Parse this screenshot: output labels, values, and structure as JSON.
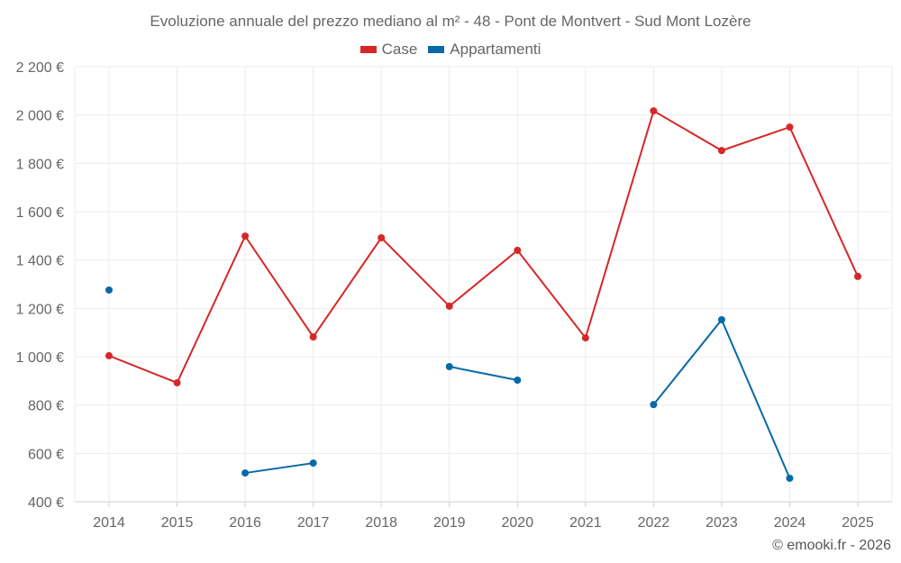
{
  "chart_data": {
    "type": "line",
    "title": "Evoluzione annuale del prezzo mediano al m² - 48 - Pont de Montvert - Sud Mont Lozère",
    "xlabel": "",
    "ylabel": "",
    "categories": [
      "2014",
      "2015",
      "2016",
      "2017",
      "2018",
      "2019",
      "2020",
      "2021",
      "2022",
      "2023",
      "2024",
      "2025"
    ],
    "ylim": [
      400,
      2200
    ],
    "yticks": [
      400,
      600,
      800,
      1000,
      1200,
      1400,
      1600,
      1800,
      2000,
      2200
    ],
    "ytick_labels": [
      "400 €",
      "600 €",
      "800 €",
      "1 000 €",
      "1 200 €",
      "1 400 €",
      "1 600 €",
      "1 800 €",
      "2 000 €",
      "2 200 €"
    ],
    "grid": true,
    "legend_position": "top-center",
    "series": [
      {
        "name": "Case",
        "color": "#d62728",
        "values": [
          1004,
          892,
          1499,
          1082,
          1492,
          1209,
          1440,
          1078,
          2017,
          1853,
          1950,
          1332
        ]
      },
      {
        "name": "Appartamenti",
        "color": "#0868a8",
        "values": [
          1276,
          null,
          519,
          560,
          null,
          959,
          903,
          null,
          802,
          1153,
          497,
          null
        ]
      }
    ]
  },
  "credit": "© emooki.fr - 2026"
}
